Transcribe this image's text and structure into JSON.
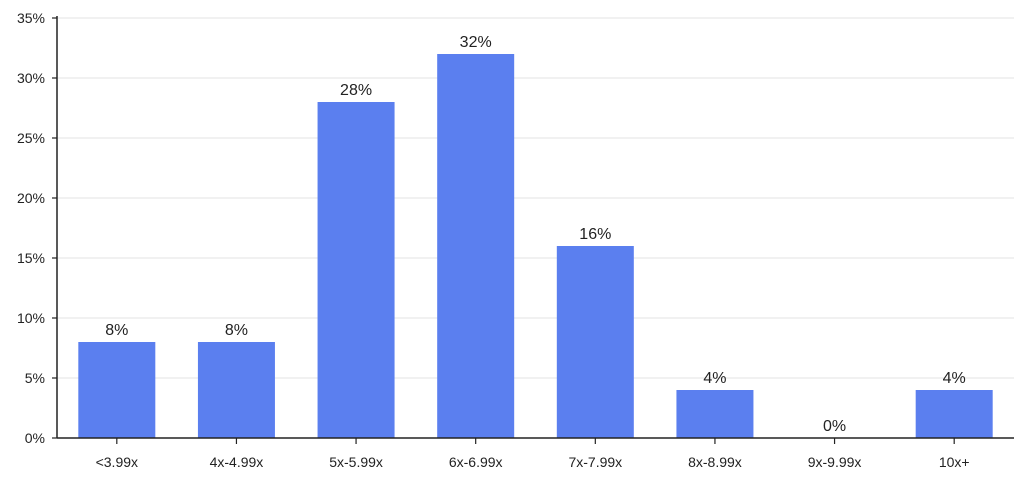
{
  "chart_data": {
    "type": "bar",
    "title": "",
    "xlabel": "",
    "ylabel": "",
    "categories": [
      "<3.99x",
      "4x-4.99x",
      "5x-5.99x",
      "6x-6.99x",
      "7x-7.99x",
      "8x-8.99x",
      "9x-9.99x",
      "10x+"
    ],
    "values": [
      8,
      8,
      28,
      32,
      16,
      4,
      0,
      4
    ],
    "data_labels": [
      "8%",
      "8%",
      "28%",
      "32%",
      "16%",
      "4%",
      "0%",
      "4%"
    ],
    "ylim": [
      0,
      35
    ],
    "yticks": [
      0,
      5,
      10,
      15,
      20,
      25,
      30,
      35
    ],
    "ytick_labels": [
      "0%",
      "5%",
      "10%",
      "15%",
      "20%",
      "25%",
      "30%",
      "35%"
    ],
    "grid": true,
    "legend": "none",
    "bar_color": "#5b7fef"
  }
}
